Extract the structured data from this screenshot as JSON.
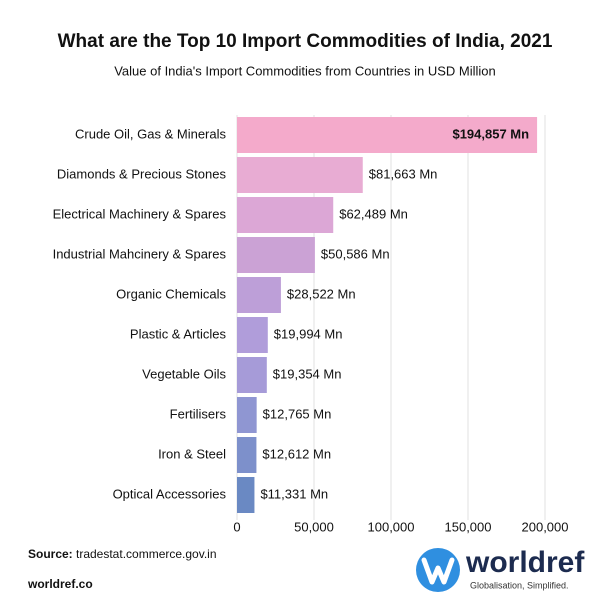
{
  "chart_data": {
    "type": "bar",
    "orientation": "horizontal",
    "title": "What are the Top 10 Import Commodities of India, 2021",
    "subtitle": "Value of India's Import Commodities from Countries in USD Million",
    "categories": [
      "Crude Oil, Gas & Minerals",
      "Diamonds & Precious Stones",
      "Electrical Machinery & Spares",
      "Industrial Mahcinery & Spares",
      "Organic Chemicals",
      "Plastic & Articles",
      "Vegetable Oils",
      "Fertilisers",
      "Iron & Steel",
      "Optical Accessories"
    ],
    "values": [
      194857,
      81663,
      62489,
      50586,
      28522,
      19994,
      19354,
      12765,
      12612,
      11331
    ],
    "value_labels": [
      "$194,857 Mn",
      "$81,663 Mn",
      "$62,489 Mn",
      "$50,586 Mn",
      "$28,522 Mn",
      "$19,994 Mn",
      "$19,354 Mn",
      "$12,765 Mn",
      "$12,612 Mn",
      "$11,331 Mn"
    ],
    "colors": [
      "#f4aacb",
      "#e8acd3",
      "#dca7d6",
      "#cba2d5",
      "#bd9fd8",
      "#b09dda",
      "#a69bd8",
      "#8f96d2",
      "#7d90cb",
      "#6a89c3"
    ],
    "xlim": [
      0,
      200000
    ],
    "xticks": [
      0,
      {
        "value": 50000,
        "label": "50,000"
      },
      {
        "value": 100000,
        "label": "100,000"
      },
      {
        "value": 150000,
        "label": "150,000"
      },
      {
        "value": 200000,
        "label": "200,000"
      }
    ],
    "grid": true,
    "source_label": "Source:",
    "source": "tradestat.commerce.gov.in",
    "footer": "worldref.co",
    "brand": "worldref",
    "tagline": "Globalisation, Simplified."
  }
}
